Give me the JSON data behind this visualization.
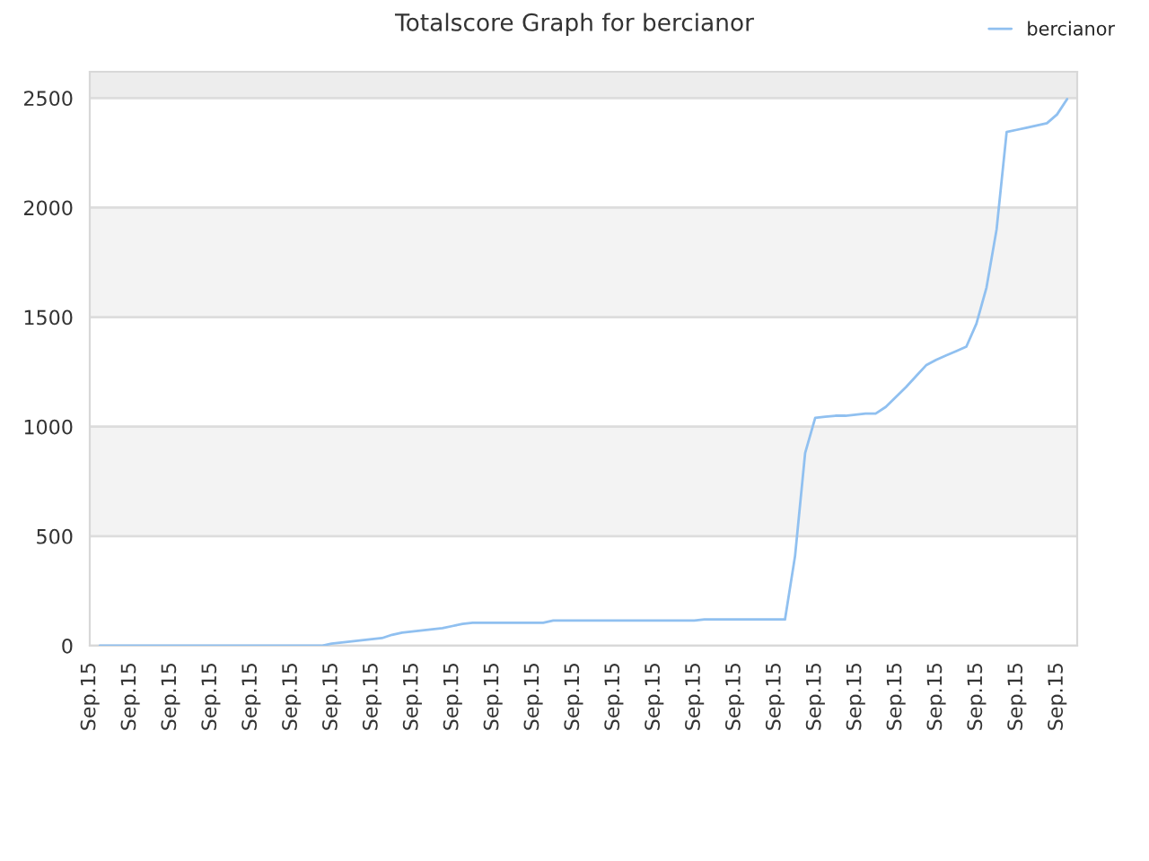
{
  "chart_data": {
    "type": "line",
    "title": "Totalscore Graph for bercianor",
    "categories": [
      "Sep.15",
      null,
      null,
      null,
      "Sep.15",
      null,
      null,
      null,
      "Sep.15",
      null,
      null,
      null,
      "Sep.15",
      null,
      null,
      null,
      "Sep.15",
      null,
      null,
      null,
      "Sep.15",
      null,
      null,
      null,
      "Sep.15",
      null,
      null,
      null,
      "Sep.15",
      null,
      null,
      null,
      "Sep.15",
      null,
      null,
      null,
      "Sep.15",
      null,
      null,
      null,
      "Sep.15",
      null,
      null,
      null,
      "Sep.15",
      null,
      null,
      null,
      "Sep.15",
      null,
      null,
      null,
      "Sep.15",
      null,
      null,
      null,
      "Sep.15",
      null,
      null,
      null,
      "Sep.15",
      null,
      null,
      null,
      "Sep.15",
      null,
      null,
      null,
      "Sep.15",
      null,
      null,
      null,
      "Sep.15",
      null,
      null,
      null,
      "Sep.15",
      null,
      null,
      null,
      "Sep.15",
      null,
      null,
      null,
      "Sep.15",
      null,
      null,
      null,
      "Sep.15",
      null,
      null,
      null,
      "Sep.15",
      null,
      null,
      null,
      "Sep.15",
      null,
      null
    ],
    "series": [
      {
        "name": "bercianor",
        "color": "#90c0f0",
        "values": [
          null,
          0,
          0,
          0,
          0,
          0,
          0,
          0,
          0,
          0,
          0,
          0,
          0,
          0,
          0,
          0,
          0,
          0,
          0,
          0,
          0,
          0,
          0,
          0,
          10,
          15,
          20,
          25,
          30,
          35,
          50,
          60,
          65,
          70,
          75,
          80,
          90,
          100,
          105,
          105,
          105,
          105,
          105,
          105,
          105,
          105,
          115,
          115,
          115,
          115,
          115,
          115,
          115,
          115,
          115,
          115,
          115,
          115,
          115,
          115,
          115,
          120,
          120,
          120,
          120,
          120,
          120,
          120,
          120,
          120,
          410,
          880,
          1040,
          1045,
          1050,
          1050,
          1055,
          1060,
          1060,
          1090,
          1135,
          1180,
          1230,
          1280,
          1305,
          1325,
          1345,
          1365,
          1470,
          1635,
          1900,
          2345,
          2355,
          2365,
          2375,
          2385,
          2425,
          2495,
          null
        ]
      }
    ],
    "ylim": [
      0,
      2620
    ],
    "yticks": [
      0,
      500,
      1000,
      1500,
      2000,
      2500
    ],
    "bands": [
      {
        "axis": "y",
        "from": 500,
        "to": 1000,
        "color": "#f3f3f3"
      },
      {
        "axis": "y",
        "from": 1500,
        "to": 2000,
        "color": "#f3f3f3"
      },
      {
        "axis": "y",
        "from": 2500,
        "to": 2620,
        "color": "#ededed"
      }
    ],
    "grid": "y",
    "legend": "top right",
    "marker": "none",
    "line_style": "solid"
  }
}
